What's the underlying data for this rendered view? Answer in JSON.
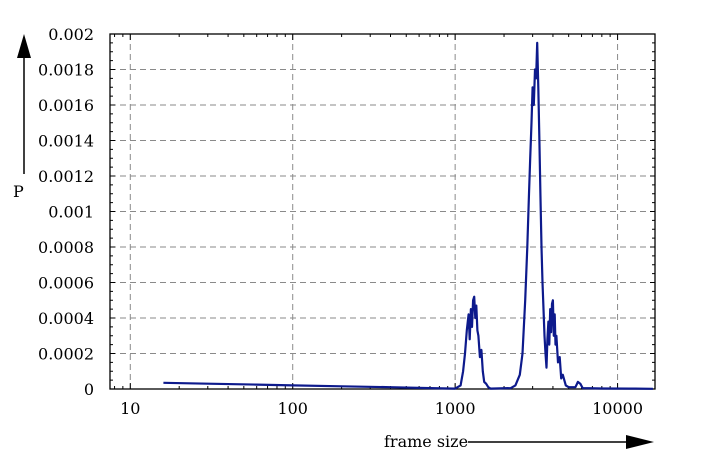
{
  "chart_data": {
    "type": "line",
    "xlabel": "frame size",
    "ylabel": "P",
    "x_scale": "log",
    "xlim": [
      7.5,
      17000
    ],
    "ylim": [
      0,
      0.002
    ],
    "grid": true,
    "x_ticks": [
      {
        "value": 10,
        "label": "10"
      },
      {
        "value": 100,
        "label": "100"
      },
      {
        "value": 1000,
        "label": "1000"
      },
      {
        "value": 10000,
        "label": "10000"
      }
    ],
    "y_ticks": [
      {
        "value": 0,
        "label": "0"
      },
      {
        "value": 0.0002,
        "label": "0.0002"
      },
      {
        "value": 0.0004,
        "label": "0.0004"
      },
      {
        "value": 0.0006,
        "label": "0.0006"
      },
      {
        "value": 0.0008,
        "label": "0.0008"
      },
      {
        "value": 0.001,
        "label": "0.001"
      },
      {
        "value": 0.0012,
        "label": "0.0012"
      },
      {
        "value": 0.0014,
        "label": "0.0014"
      },
      {
        "value": 0.0016,
        "label": "0.0016"
      },
      {
        "value": 0.0018,
        "label": "0.0018"
      },
      {
        "value": 0.002,
        "label": "0.002"
      }
    ],
    "series": [
      {
        "color": "#0d1a8c",
        "points": [
          [
            16,
            3.5e-05
          ],
          [
            30,
            3e-05
          ],
          [
            60,
            2.5e-05
          ],
          [
            100,
            2e-05
          ],
          [
            200,
            1.5e-05
          ],
          [
            400,
            1e-05
          ],
          [
            700,
            5e-06
          ],
          [
            1000,
            2e-06
          ],
          [
            1080,
            2e-05
          ],
          [
            1120,
            0.0001
          ],
          [
            1150,
            0.0002
          ],
          [
            1180,
            0.00033
          ],
          [
            1210,
            0.00042
          ],
          [
            1230,
            0.00028
          ],
          [
            1250,
            0.00045
          ],
          [
            1270,
            0.00035
          ],
          [
            1290,
            0.0005
          ],
          [
            1310,
            0.00052
          ],
          [
            1330,
            0.0004
          ],
          [
            1350,
            0.00047
          ],
          [
            1370,
            0.00033
          ],
          [
            1390,
            0.0003
          ],
          [
            1420,
            0.00018
          ],
          [
            1450,
            0.00022
          ],
          [
            1480,
            0.0001
          ],
          [
            1510,
            4e-05
          ],
          [
            1550,
            3e-05
          ],
          [
            1600,
            1e-05
          ],
          [
            1650,
            2e-06
          ],
          [
            2200,
            5e-06
          ],
          [
            2350,
            2e-05
          ],
          [
            2500,
            8e-05
          ],
          [
            2600,
            0.0002
          ],
          [
            2700,
            0.0005
          ],
          [
            2780,
            0.0008
          ],
          [
            2850,
            0.0011
          ],
          [
            2900,
            0.0013
          ],
          [
            2950,
            0.0015
          ],
          [
            3000,
            0.0017
          ],
          [
            3050,
            0.0016
          ],
          [
            3100,
            0.0018
          ],
          [
            3150,
            0.00175
          ],
          [
            3200,
            0.00195
          ],
          [
            3250,
            0.0017
          ],
          [
            3300,
            0.0014
          ],
          [
            3350,
            0.0011
          ],
          [
            3400,
            0.0008
          ],
          [
            3450,
            0.0006
          ],
          [
            3500,
            0.00045
          ],
          [
            3550,
            0.0003
          ],
          [
            3600,
            0.0002
          ],
          [
            3650,
            0.00012
          ],
          [
            3700,
            0.00028
          ],
          [
            3750,
            0.00038
          ],
          [
            3800,
            0.00025
          ],
          [
            3850,
            0.00045
          ],
          [
            3900,
            0.00032
          ],
          [
            3950,
            0.00048
          ],
          [
            4000,
            0.0005
          ],
          [
            4050,
            0.0003
          ],
          [
            4100,
            0.00042
          ],
          [
            4150,
            0.00025
          ],
          [
            4200,
            0.0003
          ],
          [
            4300,
            0.00015
          ],
          [
            4400,
            0.00018
          ],
          [
            4500,
            6e-05
          ],
          [
            4600,
            8e-05
          ],
          [
            4800,
            2e-05
          ],
          [
            5000,
            1e-05
          ],
          [
            5500,
            1e-05
          ],
          [
            5700,
            4e-05
          ],
          [
            5900,
            3e-05
          ],
          [
            6100,
            5e-06
          ],
          [
            8000,
            3e-06
          ],
          [
            12000,
            2e-06
          ],
          [
            16500,
            1e-06
          ]
        ]
      }
    ]
  }
}
